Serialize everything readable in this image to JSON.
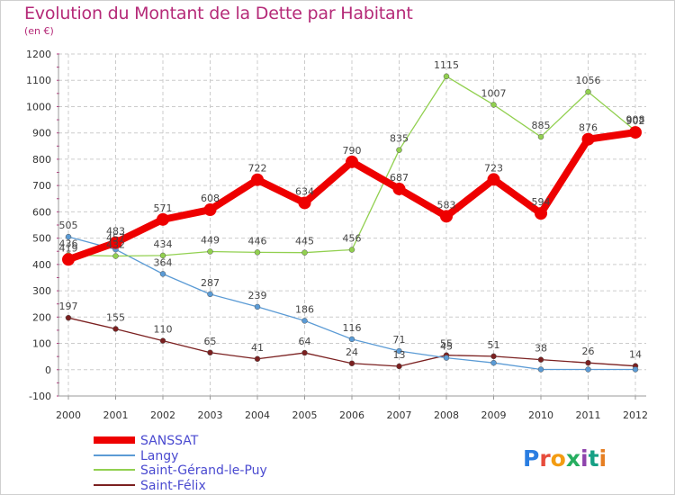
{
  "header": {
    "title": "Evolution du Montant de la Dette par Habitant",
    "subtitle": "(en €)"
  },
  "logo": {
    "text": "Proxiti"
  },
  "colors": {
    "title": "#b52a78",
    "legend_text": "#4a4ad0",
    "SANSSAT": "#ee0000",
    "Langy": "#5b9bd5",
    "Saint-Gérand-le-Puy": "#92d050",
    "Saint-Félix": "#7b2020"
  },
  "chart_data": {
    "type": "line",
    "title": "Evolution du Montant de la Dette par Habitant",
    "subtitle": "(en €)",
    "x": [
      "2000",
      "2001",
      "2002",
      "2003",
      "2004",
      "2005",
      "2006",
      "2007",
      "2008",
      "2009",
      "2010",
      "2011",
      "2012"
    ],
    "ylim": [
      -100,
      1200
    ],
    "yticks": [
      -100,
      0,
      100,
      200,
      300,
      400,
      500,
      600,
      700,
      800,
      900,
      1000,
      1100,
      1200
    ],
    "grid": "horizontal dashed",
    "legend_position": "bottom-left",
    "series": [
      {
        "name": "SANSSAT",
        "color": "#ee0000",
        "values": [
          419,
          483,
          571,
          608,
          722,
          634,
          790,
          687,
          583,
          723,
          594,
          876,
          902
        ],
        "labels": [
          "419",
          "483",
          "571",
          "608",
          "722",
          "634",
          "790",
          "687",
          "583",
          "723",
          "594",
          "876",
          "902"
        ]
      },
      {
        "name": "Langy",
        "color": "#5b9bd5",
        "values": [
          505,
          457,
          364,
          287,
          239,
          186,
          116,
          71,
          45,
          26,
          1,
          1,
          1
        ],
        "labels": [
          "505",
          "457",
          "364",
          "287",
          "239",
          "186",
          "116",
          "71",
          "45",
          "",
          "",
          "",
          ""
        ]
      },
      {
        "name": "Saint-Gérand-le-Puy",
        "color": "#92d050",
        "values": [
          436,
          432,
          434,
          449,
          446,
          445,
          456,
          835,
          1115,
          1007,
          885,
          1056,
          908
        ],
        "labels": [
          "436",
          "432",
          "434",
          "449",
          "446",
          "445",
          "456",
          "835",
          "1115",
          "1007",
          "885",
          "1056",
          "908"
        ]
      },
      {
        "name": "Saint-Félix",
        "color": "#7b2020",
        "values": [
          197,
          155,
          110,
          65,
          41,
          64,
          24,
          13,
          55,
          51,
          38,
          26,
          14
        ],
        "labels": [
          "197",
          "155",
          "110",
          "65",
          "41",
          "64",
          "24",
          "13",
          "55",
          "51",
          "38",
          "26",
          "14"
        ]
      }
    ]
  }
}
